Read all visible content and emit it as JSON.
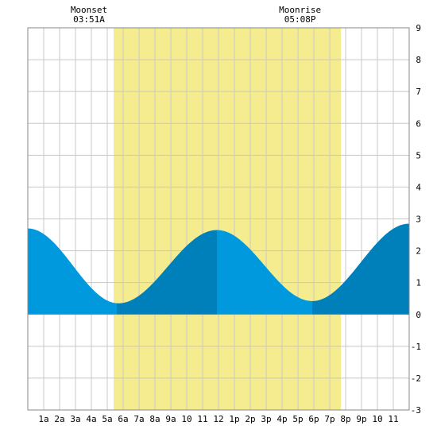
{
  "chart_data": {
    "type": "area",
    "title": "",
    "xlabel": "",
    "ylabel": "",
    "x_range_hours": [
      0,
      24
    ],
    "ylim": [
      -3,
      9
    ],
    "grid": true,
    "x_tick_hours": [
      1,
      2,
      3,
      4,
      5,
      6,
      7,
      8,
      9,
      10,
      11,
      12,
      13,
      14,
      15,
      16,
      17,
      18,
      19,
      20,
      21,
      22,
      23
    ],
    "x_tick_labels": [
      "1a",
      "2a",
      "3a",
      "4a",
      "5a",
      "6a",
      "7a",
      "8a",
      "9a",
      "10",
      "11",
      "12",
      "1p",
      "2p",
      "3p",
      "4p",
      "5p",
      "6p",
      "7p",
      "8p",
      "9p",
      "10",
      "11"
    ],
    "y_ticks": [
      -3,
      -2,
      -1,
      0,
      1,
      2,
      3,
      4,
      5,
      6,
      7,
      8,
      9
    ],
    "daylight_hours": [
      5.4,
      19.7
    ],
    "events": [
      {
        "label": "Moonset",
        "time": "03:51A",
        "hour": 3.85
      },
      {
        "label": "Moonrise",
        "time": "05:08P",
        "hour": 17.13
      }
    ],
    "extrema": [
      {
        "type": "high",
        "hour": 0.0,
        "value": 2.7
      },
      {
        "type": "low",
        "hour": 5.7,
        "value": 0.35
      },
      {
        "type": "high",
        "hour": 11.9,
        "value": 2.65
      },
      {
        "type": "low",
        "hour": 17.9,
        "value": 0.42
      },
      {
        "type": "high",
        "hour": 24.0,
        "value": 2.85
      }
    ],
    "series_shade_breaks_hours": [
      5.6,
      11.9,
      17.9
    ],
    "colors": {
      "daylight": "#f5ec8f",
      "tide_light": "#0099dd",
      "tide_dark": "#0080bb",
      "grid": "#c8c8c8",
      "frame": "#888888"
    }
  }
}
